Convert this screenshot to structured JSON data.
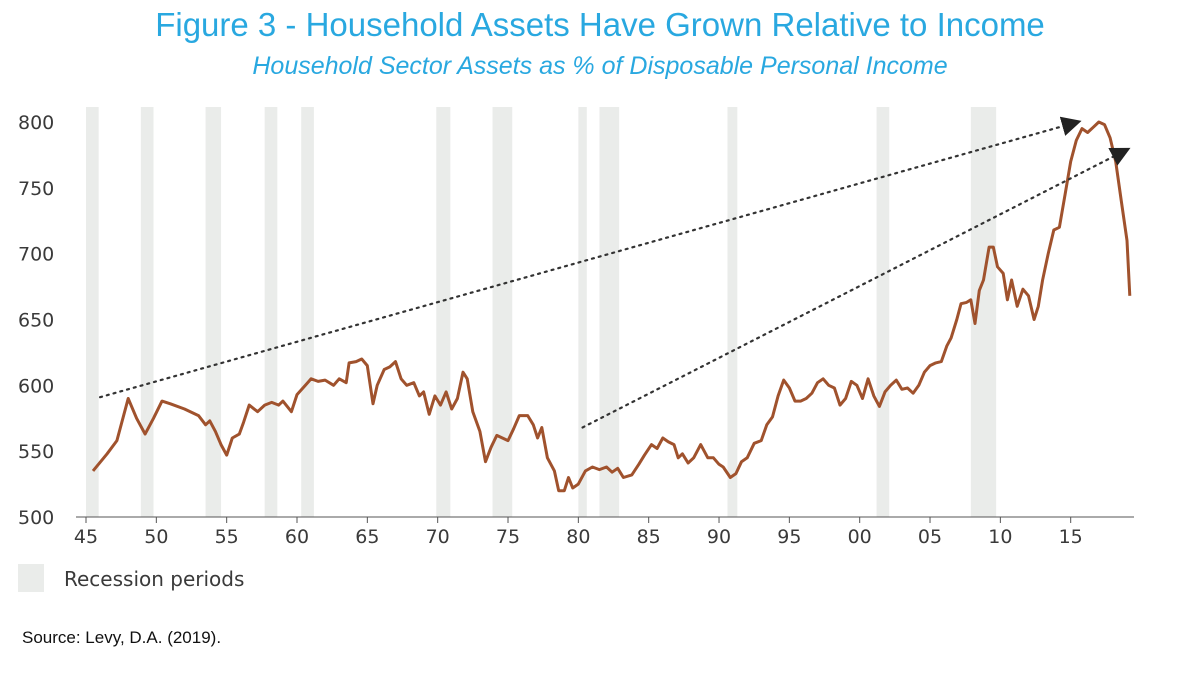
{
  "colors": {
    "title": "#29a8e0",
    "line": "#a0522d",
    "recession": "#eaecea",
    "trend": "#333333",
    "tick_text": "#3a3a3a"
  },
  "chart_data": {
    "type": "line",
    "title": "Figure 3 - Household  Assets Have Grown Relative to Income",
    "subtitle": "Household Sector Assets as % of Disposable Personal Income",
    "source": "Source: Levy, D.A. (2019).",
    "xlabel": "",
    "ylabel": "",
    "xlim": [
      1945,
      2019.5
    ],
    "ylim": [
      500,
      810
    ],
    "x_ticks": [
      {
        "value": 1945,
        "label": "45"
      },
      {
        "value": 1950,
        "label": "50"
      },
      {
        "value": 1955,
        "label": "55"
      },
      {
        "value": 1960,
        "label": "60"
      },
      {
        "value": 1965,
        "label": "65"
      },
      {
        "value": 1970,
        "label": "70"
      },
      {
        "value": 1975,
        "label": "75"
      },
      {
        "value": 1980,
        "label": "80"
      },
      {
        "value": 1985,
        "label": "85"
      },
      {
        "value": 1990,
        "label": "90"
      },
      {
        "value": 1995,
        "label": "95"
      },
      {
        "value": 2000,
        "label": "00"
      },
      {
        "value": 2005,
        "label": "05"
      },
      {
        "value": 2010,
        "label": "10"
      },
      {
        "value": 2015,
        "label": "15"
      }
    ],
    "y_ticks": [
      500,
      550,
      600,
      650,
      700,
      750,
      800
    ],
    "grid": false,
    "legend": {
      "position": "bottom-left",
      "entries": [
        {
          "label": "Recession periods"
        }
      ]
    },
    "recessions": [
      [
        1945.0,
        1945.9
      ],
      [
        1948.9,
        1949.8
      ],
      [
        1953.5,
        1954.6
      ],
      [
        1957.7,
        1958.6
      ],
      [
        1960.3,
        1961.2
      ],
      [
        1969.9,
        1970.9
      ],
      [
        1973.9,
        1975.3
      ],
      [
        1980.0,
        1980.6
      ],
      [
        1981.5,
        1982.9
      ],
      [
        1990.6,
        1991.3
      ],
      [
        2001.2,
        2002.1
      ],
      [
        2007.9,
        2009.7
      ]
    ],
    "series": [
      {
        "values": [
          [
            1945.5,
            535
          ],
          [
            1946.5,
            548
          ],
          [
            1947.2,
            558
          ],
          [
            1948.0,
            590
          ],
          [
            1948.6,
            575
          ],
          [
            1949.2,
            563
          ],
          [
            1949.8,
            575
          ],
          [
            1950.4,
            588
          ],
          [
            1951.0,
            586
          ],
          [
            1952.0,
            582
          ],
          [
            1953.0,
            577
          ],
          [
            1953.5,
            570
          ],
          [
            1953.8,
            573
          ],
          [
            1954.2,
            565
          ],
          [
            1954.6,
            555
          ],
          [
            1955.0,
            547
          ],
          [
            1955.4,
            560
          ],
          [
            1955.9,
            563
          ],
          [
            1956.2,
            572
          ],
          [
            1956.6,
            585
          ],
          [
            1957.2,
            580
          ],
          [
            1957.7,
            585
          ],
          [
            1958.2,
            587
          ],
          [
            1958.7,
            585
          ],
          [
            1959.0,
            588
          ],
          [
            1959.6,
            580
          ],
          [
            1960.0,
            593
          ],
          [
            1960.6,
            600
          ],
          [
            1961.0,
            605
          ],
          [
            1961.5,
            603
          ],
          [
            1962.0,
            604
          ],
          [
            1962.6,
            600
          ],
          [
            1963.0,
            605
          ],
          [
            1963.5,
            602
          ],
          [
            1963.7,
            617
          ],
          [
            1964.2,
            618
          ],
          [
            1964.6,
            620
          ],
          [
            1965.0,
            615
          ],
          [
            1965.4,
            586
          ],
          [
            1965.7,
            600
          ],
          [
            1966.2,
            612
          ],
          [
            1966.6,
            614
          ],
          [
            1967.0,
            618
          ],
          [
            1967.4,
            605
          ],
          [
            1967.8,
            600
          ],
          [
            1968.3,
            602
          ],
          [
            1968.7,
            592
          ],
          [
            1969.0,
            595
          ],
          [
            1969.4,
            578
          ],
          [
            1969.8,
            592
          ],
          [
            1970.2,
            585
          ],
          [
            1970.6,
            595
          ],
          [
            1971.0,
            582
          ],
          [
            1971.4,
            590
          ],
          [
            1971.8,
            610
          ],
          [
            1972.1,
            605
          ],
          [
            1972.5,
            580
          ],
          [
            1973.0,
            565
          ],
          [
            1973.4,
            542
          ],
          [
            1973.8,
            553
          ],
          [
            1974.2,
            562
          ],
          [
            1974.6,
            560
          ],
          [
            1975.0,
            558
          ],
          [
            1975.4,
            567
          ],
          [
            1975.8,
            577
          ],
          [
            1976.4,
            577
          ],
          [
            1976.8,
            570
          ],
          [
            1977.1,
            560
          ],
          [
            1977.4,
            568
          ],
          [
            1977.8,
            545
          ],
          [
            1978.3,
            535
          ],
          [
            1978.6,
            520
          ],
          [
            1979.0,
            520
          ],
          [
            1979.3,
            530
          ],
          [
            1979.6,
            522
          ],
          [
            1980.0,
            525
          ],
          [
            1980.5,
            535
          ],
          [
            1981.0,
            538
          ],
          [
            1981.5,
            536
          ],
          [
            1982.0,
            538
          ],
          [
            1982.4,
            534
          ],
          [
            1982.8,
            537
          ],
          [
            1983.2,
            530
          ],
          [
            1983.8,
            532
          ],
          [
            1984.3,
            540
          ],
          [
            1984.7,
            547
          ],
          [
            1985.2,
            555
          ],
          [
            1985.6,
            552
          ],
          [
            1986.0,
            560
          ],
          [
            1986.4,
            557
          ],
          [
            1986.8,
            555
          ],
          [
            1987.1,
            545
          ],
          [
            1987.4,
            548
          ],
          [
            1987.8,
            541
          ],
          [
            1988.2,
            545
          ],
          [
            1988.7,
            555
          ],
          [
            1989.2,
            545
          ],
          [
            1989.6,
            545
          ],
          [
            1990.0,
            540
          ],
          [
            1990.3,
            538
          ],
          [
            1990.8,
            530
          ],
          [
            1991.2,
            533
          ],
          [
            1991.6,
            542
          ],
          [
            1992.0,
            545
          ],
          [
            1992.5,
            556
          ],
          [
            1993.0,
            558
          ],
          [
            1993.4,
            570
          ],
          [
            1993.8,
            576
          ],
          [
            1994.2,
            592
          ],
          [
            1994.6,
            604
          ],
          [
            1995.0,
            598
          ],
          [
            1995.4,
            588
          ],
          [
            1995.8,
            588
          ],
          [
            1996.2,
            590
          ],
          [
            1996.6,
            594
          ],
          [
            1997.0,
            602
          ],
          [
            1997.4,
            605
          ],
          [
            1997.8,
            600
          ],
          [
            1998.2,
            598
          ],
          [
            1998.6,
            585
          ],
          [
            1999.0,
            590
          ],
          [
            1999.4,
            603
          ],
          [
            1999.8,
            600
          ],
          [
            2000.2,
            590
          ],
          [
            2000.6,
            605
          ],
          [
            2001.0,
            592
          ],
          [
            2001.4,
            584
          ],
          [
            2001.8,
            595
          ],
          [
            2002.2,
            600
          ],
          [
            2002.6,
            604
          ],
          [
            2003.0,
            597
          ],
          [
            2003.4,
            598
          ],
          [
            2003.8,
            594
          ],
          [
            2004.2,
            600
          ],
          [
            2004.6,
            610
          ],
          [
            2005.0,
            615
          ],
          [
            2005.4,
            617
          ],
          [
            2005.8,
            618
          ],
          [
            2006.2,
            630
          ],
          [
            2006.5,
            636
          ],
          [
            2006.9,
            650
          ],
          [
            2007.2,
            662
          ],
          [
            2007.6,
            663
          ],
          [
            2007.9,
            665
          ],
          [
            2008.2,
            647
          ],
          [
            2008.5,
            672
          ],
          [
            2008.8,
            680
          ],
          [
            2009.2,
            705
          ],
          [
            2009.5,
            705
          ],
          [
            2009.8,
            690
          ],
          [
            2010.2,
            685
          ],
          [
            2010.5,
            665
          ],
          [
            2010.8,
            680
          ],
          [
            2011.2,
            660
          ],
          [
            2011.6,
            673
          ],
          [
            2012.0,
            668
          ],
          [
            2012.4,
            650
          ],
          [
            2012.7,
            660
          ],
          [
            2013.0,
            680
          ],
          [
            2013.4,
            700
          ],
          [
            2013.8,
            718
          ],
          [
            2014.2,
            720
          ],
          [
            2014.6,
            745
          ],
          [
            2015.0,
            770
          ],
          [
            2015.4,
            786
          ],
          [
            2015.8,
            795
          ],
          [
            2016.2,
            792
          ],
          [
            2016.6,
            796
          ],
          [
            2017.0,
            800
          ],
          [
            2017.4,
            798
          ],
          [
            2017.8,
            788
          ],
          [
            2018.2,
            770
          ],
          [
            2018.6,
            740
          ],
          [
            2019.0,
            710
          ],
          [
            2019.2,
            668
          ]
        ]
      }
    ]
  }
}
